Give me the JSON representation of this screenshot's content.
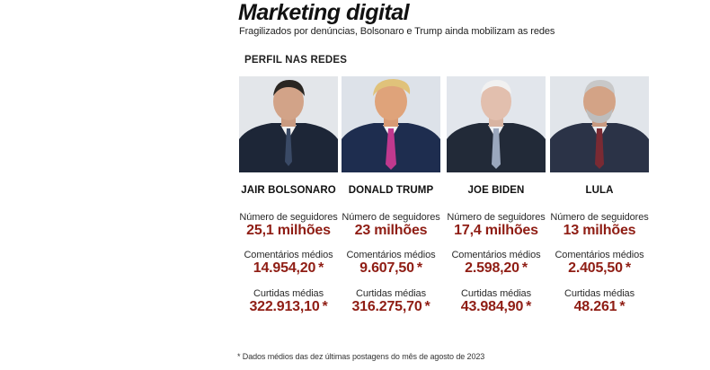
{
  "header": {
    "title": "Marketing digital",
    "subtitle": "Fragilizados por denúncias, Bolsonaro e Trump ainda mobilizam as redes",
    "section": "PERFIL NAS REDES"
  },
  "profiles": [
    {
      "name": "JAIR BOLSONARO",
      "followers_label": "Número de seguidores",
      "followers": "25,1 milhões",
      "comments_label": "Comentários médios",
      "comments": "14.954,20",
      "likes_label": "Curtidas médias",
      "likes": "322.913,10",
      "asterisk": "*"
    },
    {
      "name": "DONALD TRUMP",
      "followers_label": "Número de seguidores",
      "followers": "23 milhões",
      "comments_label": "Comentários médios",
      "comments": "9.607,50",
      "likes_label": "Curtidas médias",
      "likes": "316.275,70",
      "asterisk": "*"
    },
    {
      "name": "JOE BIDEN",
      "followers_label": "Número de seguidores",
      "followers": "17,4 milhões",
      "comments_label": "Comentários médios",
      "comments": "2.598,20",
      "likes_label": "Curtidas médias",
      "likes": "43.984,90",
      "asterisk": "*"
    },
    {
      "name": "LULA",
      "followers_label": "Número de seguidores",
      "followers": "13 milhões",
      "comments_label": "Comentários médios",
      "comments": "2.405,50",
      "likes_label": "Curtidas médias",
      "likes": "48.261",
      "asterisk": "*"
    }
  ],
  "footnote": "* Dados médios das dez últimas postagens do mês de agosto de 2023",
  "colors": {
    "value_red": "#8f1d14",
    "photo_bg": "#dfe3e8"
  }
}
